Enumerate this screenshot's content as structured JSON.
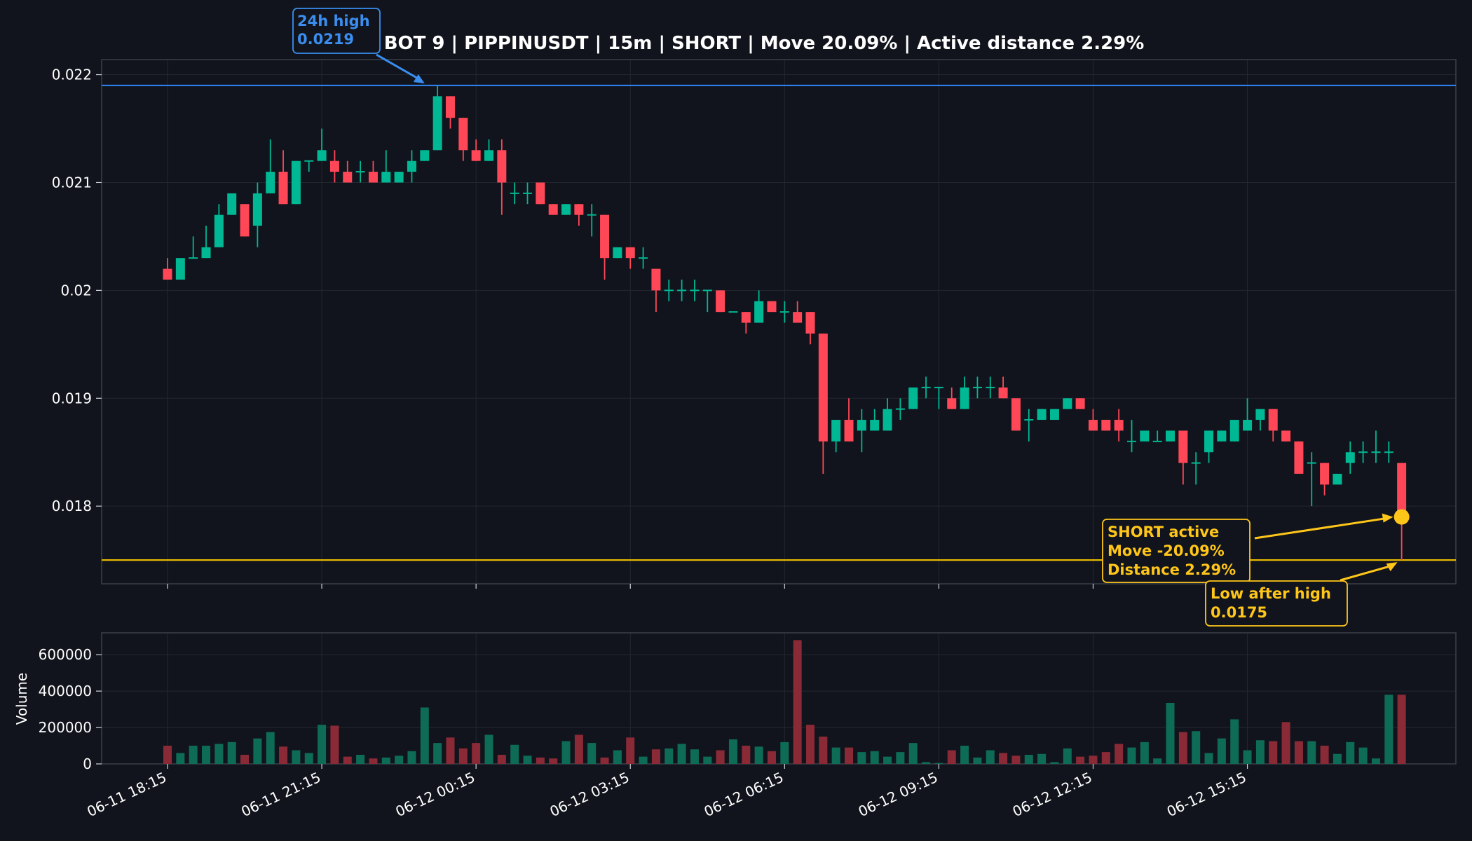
{
  "chart_data": {
    "type": "candlestick",
    "title": "BOT 9 | PIPPINUSDT | 15m | SHORT | Move 20.09% | Active distance 2.29%",
    "ylim": [
      0.01728,
      0.02214
    ],
    "yticks": [
      0.018,
      0.019,
      0.02,
      0.021,
      0.022
    ],
    "ytick_labels": [
      "0.018",
      "0.019",
      "0.02",
      "0.021",
      "0.022"
    ],
    "x_tick_labels": [
      "06-11 18:15",
      "06-11 21:15",
      "06-12 00:15",
      "06-12 03:15",
      "06-12 06:15",
      "06-12 09:15",
      "06-12 12:15",
      "06-12 15:15"
    ],
    "x_tick_every": 12,
    "volume_ylabel": "Volume",
    "volume_ylim": [
      0,
      720000
    ],
    "volume_ticks": [
      0,
      200000,
      400000,
      600000
    ],
    "volume_tick_labels": [
      "0",
      "200000",
      "400000",
      "600000"
    ],
    "grid": true,
    "candles": [
      [
        0.0202,
        0.0203,
        0.0201,
        0.0201,
        100000
      ],
      [
        0.0201,
        0.0203,
        0.0201,
        0.0203,
        60000
      ],
      [
        0.0203,
        0.0205,
        0.0203,
        0.0203,
        100000
      ],
      [
        0.0203,
        0.0206,
        0.0203,
        0.0204,
        100000
      ],
      [
        0.0204,
        0.0208,
        0.0204,
        0.0207,
        110000
      ],
      [
        0.0207,
        0.0209,
        0.0207,
        0.0209,
        120000
      ],
      [
        0.0208,
        0.0208,
        0.0205,
        0.0205,
        50000
      ],
      [
        0.0206,
        0.021,
        0.0204,
        0.0209,
        140000
      ],
      [
        0.0209,
        0.0214,
        0.0209,
        0.0211,
        175000
      ],
      [
        0.0211,
        0.0213,
        0.0208,
        0.0208,
        95000
      ],
      [
        0.0208,
        0.0212,
        0.0208,
        0.0212,
        75000
      ],
      [
        0.0212,
        0.0212,
        0.0211,
        0.0212,
        60000
      ],
      [
        0.0212,
        0.0215,
        0.0212,
        0.0213,
        215000
      ],
      [
        0.0212,
        0.0213,
        0.021,
        0.0211,
        210000
      ],
      [
        0.0211,
        0.0212,
        0.021,
        0.021,
        40000
      ],
      [
        0.0211,
        0.0212,
        0.021,
        0.0211,
        50000
      ],
      [
        0.0211,
        0.0212,
        0.021,
        0.021,
        30000
      ],
      [
        0.021,
        0.0213,
        0.021,
        0.0211,
        35000
      ],
      [
        0.021,
        0.0211,
        0.021,
        0.0211,
        45000
      ],
      [
        0.0211,
        0.0213,
        0.021,
        0.0212,
        70000
      ],
      [
        0.0212,
        0.0213,
        0.0212,
        0.0213,
        310000
      ],
      [
        0.0213,
        0.0219,
        0.0213,
        0.0218,
        115000
      ],
      [
        0.0218,
        0.0218,
        0.0215,
        0.0216,
        145000
      ],
      [
        0.0216,
        0.0216,
        0.0212,
        0.0213,
        85000
      ],
      [
        0.0213,
        0.0214,
        0.0212,
        0.0212,
        115000
      ],
      [
        0.0212,
        0.0214,
        0.0212,
        0.0213,
        160000
      ],
      [
        0.0213,
        0.0214,
        0.0207,
        0.021,
        50000
      ],
      [
        0.0209,
        0.021,
        0.0208,
        0.0209,
        105000
      ],
      [
        0.0209,
        0.021,
        0.0208,
        0.0209,
        45000
      ],
      [
        0.021,
        0.021,
        0.0208,
        0.0208,
        35000
      ],
      [
        0.0208,
        0.0208,
        0.0207,
        0.0207,
        30000
      ],
      [
        0.0207,
        0.0208,
        0.0207,
        0.0208,
        125000
      ],
      [
        0.0208,
        0.0208,
        0.0206,
        0.0207,
        160000
      ],
      [
        0.0207,
        0.0208,
        0.0205,
        0.0207,
        115000
      ],
      [
        0.0207,
        0.0207,
        0.0201,
        0.0203,
        35000
      ],
      [
        0.0203,
        0.0204,
        0.0203,
        0.0204,
        75000
      ],
      [
        0.0204,
        0.0204,
        0.0202,
        0.0203,
        145000
      ],
      [
        0.0203,
        0.0204,
        0.0202,
        0.0203,
        40000
      ],
      [
        0.0202,
        0.0202,
        0.0198,
        0.02,
        80000
      ],
      [
        0.02,
        0.0201,
        0.0199,
        0.02,
        85000
      ],
      [
        0.02,
        0.0201,
        0.0199,
        0.02,
        110000
      ],
      [
        0.02,
        0.0201,
        0.0199,
        0.02,
        80000
      ],
      [
        0.02,
        0.02,
        0.0198,
        0.02,
        40000
      ],
      [
        0.02,
        0.02,
        0.0198,
        0.0198,
        75000
      ],
      [
        0.0198,
        0.0198,
        0.0198,
        0.0198,
        135000
      ],
      [
        0.0198,
        0.0198,
        0.0196,
        0.0197,
        100000
      ],
      [
        0.0197,
        0.02,
        0.0197,
        0.0199,
        95000
      ],
      [
        0.0199,
        0.0199,
        0.0198,
        0.0198,
        70000
      ],
      [
        0.0198,
        0.0199,
        0.0197,
        0.0198,
        120000
      ],
      [
        0.0198,
        0.0199,
        0.0197,
        0.0197,
        680000
      ],
      [
        0.0198,
        0.0198,
        0.0195,
        0.0196,
        215000
      ],
      [
        0.0196,
        0.0196,
        0.0183,
        0.0186,
        150000
      ],
      [
        0.0186,
        0.0188,
        0.0185,
        0.0188,
        90000
      ],
      [
        0.0188,
        0.019,
        0.0186,
        0.0186,
        90000
      ],
      [
        0.0187,
        0.0189,
        0.0185,
        0.0188,
        65000
      ],
      [
        0.0187,
        0.0189,
        0.0187,
        0.0188,
        70000
      ],
      [
        0.0187,
        0.019,
        0.0187,
        0.0189,
        40000
      ],
      [
        0.0189,
        0.019,
        0.0188,
        0.0189,
        65000
      ],
      [
        0.0189,
        0.0191,
        0.0189,
        0.0191,
        115000
      ],
      [
        0.0191,
        0.0192,
        0.019,
        0.0191,
        10000
      ],
      [
        0.0191,
        0.0191,
        0.0189,
        0.0191,
        5000
      ],
      [
        0.019,
        0.0191,
        0.0189,
        0.0189,
        75000
      ],
      [
        0.0189,
        0.0192,
        0.0189,
        0.0191,
        100000
      ],
      [
        0.0191,
        0.0192,
        0.019,
        0.0191,
        35000
      ],
      [
        0.0191,
        0.0192,
        0.019,
        0.0191,
        75000
      ],
      [
        0.0191,
        0.0192,
        0.019,
        0.019,
        60000
      ],
      [
        0.019,
        0.019,
        0.0187,
        0.0187,
        45000
      ],
      [
        0.0188,
        0.0189,
        0.0186,
        0.0188,
        50000
      ],
      [
        0.0188,
        0.0189,
        0.0188,
        0.0189,
        55000
      ],
      [
        0.0188,
        0.0189,
        0.0188,
        0.0189,
        10000
      ],
      [
        0.0189,
        0.019,
        0.0189,
        0.019,
        85000
      ],
      [
        0.019,
        0.019,
        0.0189,
        0.0189,
        40000
      ],
      [
        0.0188,
        0.0189,
        0.0187,
        0.0187,
        45000
      ],
      [
        0.0188,
        0.0188,
        0.0187,
        0.0187,
        65000
      ],
      [
        0.0188,
        0.0189,
        0.0186,
        0.0187,
        110000
      ],
      [
        0.0186,
        0.0188,
        0.0185,
        0.0186,
        90000
      ],
      [
        0.0186,
        0.0187,
        0.0186,
        0.0187,
        120000
      ],
      [
        0.0186,
        0.0187,
        0.0186,
        0.0186,
        30000
      ],
      [
        0.0186,
        0.0187,
        0.0186,
        0.0187,
        335000
      ],
      [
        0.0187,
        0.0187,
        0.0182,
        0.0184,
        175000
      ],
      [
        0.0184,
        0.0185,
        0.0182,
        0.0184,
        180000
      ],
      [
        0.0185,
        0.0187,
        0.0184,
        0.0187,
        60000
      ],
      [
        0.0186,
        0.0187,
        0.0186,
        0.0187,
        140000
      ],
      [
        0.0186,
        0.0188,
        0.0186,
        0.0188,
        245000
      ],
      [
        0.0187,
        0.019,
        0.0187,
        0.0188,
        75000
      ],
      [
        0.0188,
        0.0189,
        0.0187,
        0.0189,
        130000
      ],
      [
        0.0189,
        0.0189,
        0.0186,
        0.0187,
        125000
      ],
      [
        0.0187,
        0.0187,
        0.0186,
        0.0186,
        230000
      ],
      [
        0.0186,
        0.0186,
        0.0183,
        0.0183,
        125000
      ],
      [
        0.0184,
        0.0185,
        0.018,
        0.0184,
        125000
      ],
      [
        0.0184,
        0.0184,
        0.0181,
        0.0182,
        100000
      ],
      [
        0.0182,
        0.0183,
        0.0182,
        0.0183,
        55000
      ],
      [
        0.0184,
        0.0186,
        0.0183,
        0.0185,
        120000
      ],
      [
        0.0185,
        0.0186,
        0.0184,
        0.0185,
        90000
      ],
      [
        0.0185,
        0.0187,
        0.0184,
        0.0185,
        30000
      ],
      [
        0.0185,
        0.0186,
        0.0184,
        0.0185,
        380000
      ],
      [
        0.0184,
        0.0184,
        0.0175,
        0.0179,
        380000
      ]
    ],
    "reference_lines": [
      {
        "name": "24h high",
        "value": 0.0219,
        "color": "#2f80ed"
      },
      {
        "name": "Low after high",
        "value": 0.0175,
        "color": "#e6b800"
      }
    ],
    "annotations": {
      "high": {
        "lines": [
          "24h high",
          "0.0219"
        ],
        "color": "#3a8ef0",
        "target_index": 20,
        "target_value": 0.0219
      },
      "short": {
        "lines": [
          "SHORT active",
          "Move -20.09%",
          "Distance 2.29%"
        ],
        "color": "#ffc61a",
        "target_index": 96,
        "target_value": 0.0179
      },
      "low": {
        "lines": [
          "Low after high",
          "0.0175"
        ],
        "color": "#ffc61a",
        "target_index": 96,
        "target_value": 0.0175
      }
    },
    "colors": {
      "background": "#11141c",
      "up": "#00b894",
      "down": "#ff4757",
      "vol_up": "#0e6b56",
      "vol_down": "#8a2a36",
      "grid": "#23272f",
      "axis": "#3b3f48",
      "text": "#ffffff",
      "marker": "#ffc61a"
    }
  }
}
